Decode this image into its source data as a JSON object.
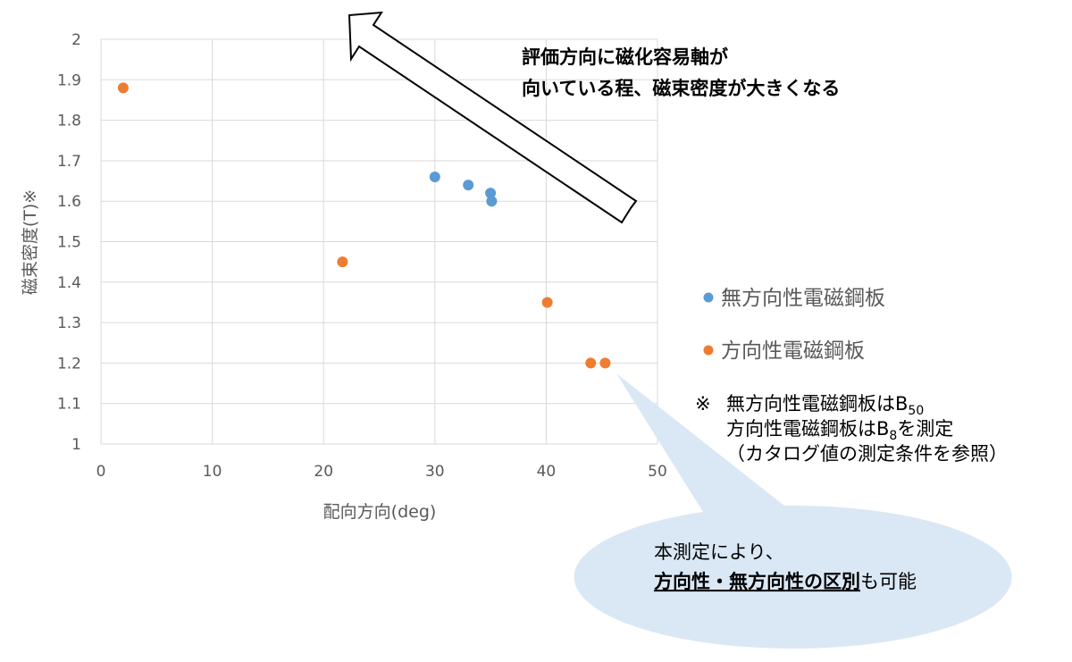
{
  "chart_data": {
    "type": "scatter",
    "title": "",
    "xlabel": "配向方向(deg)",
    "ylabel": "磁束密度(T)※",
    "xlim": [
      0,
      50
    ],
    "ylim": [
      1,
      2
    ],
    "xticks": [
      "0",
      "10",
      "20",
      "30",
      "40",
      "50"
    ],
    "yticks": [
      "1",
      "1.1",
      "1.2",
      "1.3",
      "1.4",
      "1.5",
      "1.6",
      "1.7",
      "1.8",
      "1.9",
      "2"
    ],
    "grid": true,
    "legend_position": "right",
    "series": [
      {
        "name": "無方向性電磁鋼板",
        "color": "#5b9bd5",
        "points": [
          {
            "x": 30.0,
            "y": 1.66
          },
          {
            "x": 33.0,
            "y": 1.64
          },
          {
            "x": 35.0,
            "y": 1.62
          },
          {
            "x": 35.1,
            "y": 1.6
          }
        ]
      },
      {
        "name": "方向性電磁鋼板",
        "color": "#ed7d31",
        "points": [
          {
            "x": 2.0,
            "y": 1.88
          },
          {
            "x": 21.7,
            "y": 1.45
          },
          {
            "x": 40.1,
            "y": 1.35
          },
          {
            "x": 44.0,
            "y": 1.2
          },
          {
            "x": 45.3,
            "y": 1.2
          }
        ]
      }
    ],
    "annotation_arrow": {
      "line1": "評価方向に磁化容易軸が",
      "line2": "向いている程、磁束密度が大きくなる"
    },
    "footnote": {
      "mark": "※",
      "line1_text": "無方向性電磁鋼板はB",
      "line1_sub": "50",
      "line2_text": "方向性電磁鋼板はB",
      "line2_sub": "8",
      "line2_tail": "を測定",
      "line3": "（カタログ値の測定条件を参照）"
    },
    "callout": {
      "line1": "本測定により、",
      "line2_bold": "方向性・無方向性の区別",
      "line2_tail": "も可能"
    }
  }
}
